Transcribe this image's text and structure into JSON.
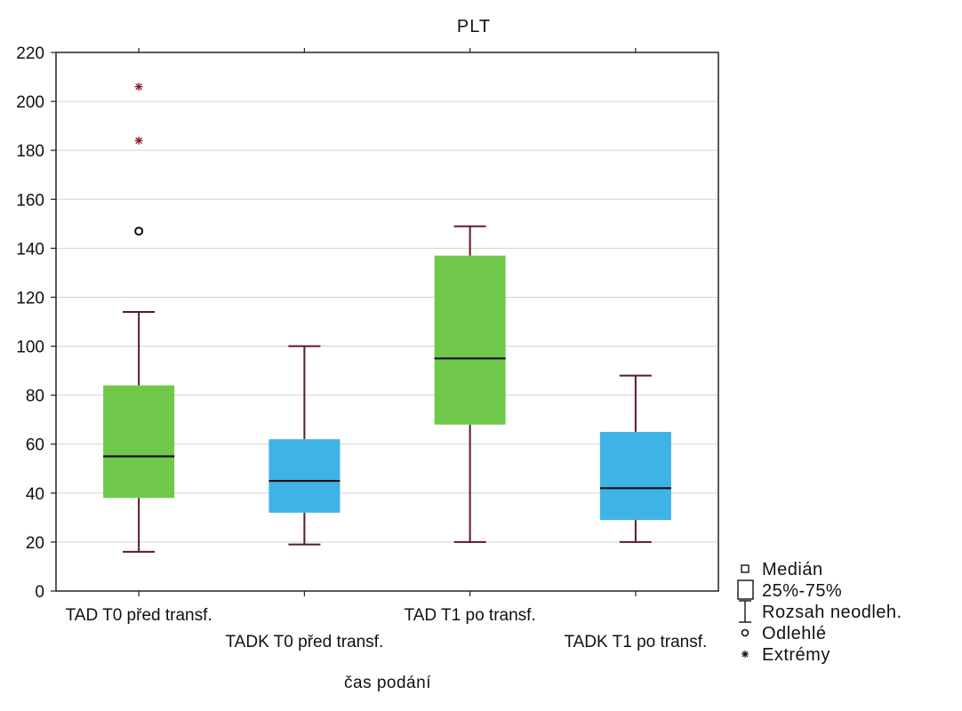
{
  "chart_data": {
    "type": "box",
    "title": "PLT",
    "xlabel": "čas podání",
    "ylabel": "",
    "ylim": [
      0,
      220
    ],
    "yticks": [
      0,
      20,
      40,
      60,
      80,
      100,
      120,
      140,
      160,
      180,
      200,
      220
    ],
    "grid": true,
    "legend_position": "bottom-right",
    "categories": [
      "TAD T0 před transf.",
      "TADK T0 před transf.",
      "TAD T1 po transf.",
      "TADK T1 po transf."
    ],
    "boxes": [
      {
        "category": "TAD T0 před transf.",
        "whisker_low": 16,
        "q1": 38,
        "median": 55,
        "q3": 84,
        "whisker_high": 114,
        "outliers": [
          147
        ],
        "extremes": [
          184,
          206
        ],
        "color": "#70c84b"
      },
      {
        "category": "TADK T0 před transf.",
        "whisker_low": 19,
        "q1": 32,
        "median": 45,
        "q3": 62,
        "whisker_high": 100,
        "outliers": [],
        "extremes": [],
        "color": "#3fb2e6"
      },
      {
        "category": "TAD T1 po transf.",
        "whisker_low": 20,
        "q1": 68,
        "median": 95,
        "q3": 137,
        "whisker_high": 149,
        "outliers": [],
        "extremes": [],
        "color": "#70c84b"
      },
      {
        "category": "TADK T1 po transf.",
        "whisker_low": 20,
        "q1": 29,
        "median": 42,
        "q3": 65,
        "whisker_high": 88,
        "outliers": [],
        "extremes": [],
        "color": "#3fb2e6"
      }
    ],
    "legend": [
      {
        "symbol": "median",
        "label": "Medián"
      },
      {
        "symbol": "box",
        "label": "25%-75%"
      },
      {
        "symbol": "range",
        "label": "Rozsah neodleh."
      },
      {
        "symbol": "outlier",
        "label": "Odlehlé"
      },
      {
        "symbol": "extreme",
        "label": "Extrémy"
      }
    ],
    "colors": {
      "whisker": "#5a1a2a",
      "extreme": "#8a1a2a",
      "grid": "#d4d4d4"
    }
  }
}
